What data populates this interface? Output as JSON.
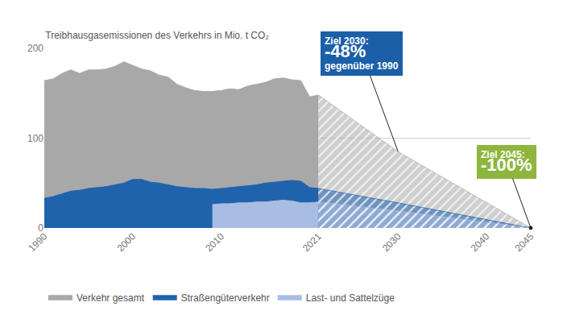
{
  "chart_data": {
    "type": "area",
    "title": "Treibhausgasemissionen des Verkehrs in Mio. t CO₂",
    "x": [
      1990,
      1991,
      1992,
      1993,
      1994,
      1995,
      1996,
      1997,
      1998,
      1999,
      2000,
      2001,
      2002,
      2003,
      2004,
      2005,
      2006,
      2007,
      2008,
      2009,
      2010,
      2011,
      2012,
      2013,
      2014,
      2015,
      2016,
      2017,
      2018,
      2019,
      2020,
      2021
    ],
    "target_x": [
      2021,
      2030,
      2045
    ],
    "series": [
      {
        "name": "Verkehr gesamt",
        "color": "#a8a8a8",
        "values": [
          164,
          166,
          172,
          176,
          172,
          176,
          176,
          177,
          180,
          185,
          181,
          177,
          175,
          170,
          168,
          160,
          156,
          153,
          152,
          152,
          153,
          155,
          154,
          158,
          160,
          162,
          166,
          167,
          165,
          164,
          146,
          148
        ],
        "target": [
          148,
          85,
          0
        ]
      },
      {
        "name": "Straßengüterverkehr",
        "color": "#1f63ad",
        "values": [
          33,
          35,
          38,
          41,
          42,
          44,
          45,
          46,
          48,
          50,
          54,
          54,
          51,
          50,
          48,
          46,
          45,
          44,
          44,
          43,
          44,
          45,
          46,
          47,
          48,
          50,
          51,
          52,
          53,
          52,
          45,
          44
        ],
        "target": [
          44,
          28,
          0
        ]
      },
      {
        "name": "Last- und Sattelzüge",
        "color": "#a9bde3",
        "values": [
          null,
          null,
          null,
          null,
          null,
          null,
          null,
          null,
          null,
          null,
          null,
          null,
          null,
          null,
          null,
          null,
          null,
          null,
          null,
          26,
          27,
          27,
          28,
          28,
          29,
          29,
          30,
          31,
          30,
          28,
          28,
          29
        ],
        "target": [
          29,
          19,
          0
        ]
      }
    ],
    "annotations": [
      {
        "x": 2030,
        "lines": [
          "Ziel 2030:",
          "-48%",
          "gegenüber 1990"
        ],
        "color": "#1a5fa8"
      },
      {
        "x": 2045,
        "lines": [
          "Ziel 2045:",
          "-100%"
        ],
        "color": "#8db63c"
      }
    ],
    "xlim": [
      1990,
      2045
    ],
    "xticks": [
      1990,
      2000,
      2010,
      2021,
      2030,
      2040,
      2045
    ],
    "ylim": [
      0,
      200
    ],
    "yticks": [
      0,
      100,
      200
    ],
    "grid": true,
    "legend": "bottom"
  }
}
